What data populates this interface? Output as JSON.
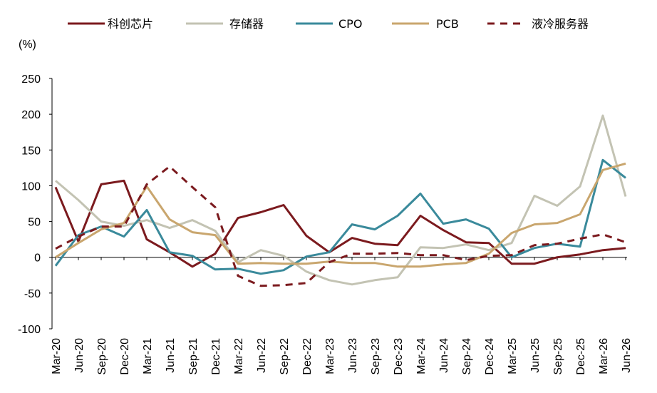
{
  "chart_data": {
    "type": "line",
    "title": "",
    "xlabel": "",
    "ylabel": "",
    "unit_label": "(%)",
    "ylim": [
      -100,
      250
    ],
    "yticks": [
      -100,
      -50,
      0,
      50,
      100,
      150,
      200,
      250
    ],
    "grid": false,
    "legend_position": "top",
    "categories": [
      "Mar-20",
      "Jun-20",
      "Sep-20",
      "Dec-20",
      "Mar-21",
      "Jun-21",
      "Sep-21",
      "Dec-21",
      "Mar-22",
      "Jun-22",
      "Sep-22",
      "Dec-22",
      "Mar-23",
      "Jun-23",
      "Sep-23",
      "Dec-23",
      "Mar-24",
      "Jun-24",
      "Sep-24",
      "Dec-24",
      "Mar-25",
      "Jun-25",
      "Sep-25",
      "Dec-25",
      "Mar-26",
      "Jun-26"
    ],
    "series": [
      {
        "name": "科创芯片",
        "color": "#7B1A1E",
        "dash": "solid",
        "values": [
          98,
          22,
          102,
          107,
          25,
          7,
          -13,
          5,
          55,
          63,
          73,
          30,
          7,
          27,
          19,
          17,
          58,
          38,
          21,
          20,
          -9,
          -9,
          0,
          4,
          10,
          13
        ]
      },
      {
        "name": "存储器",
        "color": "#C3C3B3",
        "dash": "solid",
        "values": [
          107,
          80,
          50,
          44,
          52,
          41,
          52,
          37,
          -7,
          10,
          2,
          -20,
          -32,
          -38,
          -32,
          -28,
          14,
          13,
          18,
          10,
          20,
          86,
          72,
          99,
          198,
          85
        ]
      },
      {
        "name": "CPO",
        "color": "#3A8A9B",
        "dash": "solid",
        "values": [
          -12,
          31,
          43,
          29,
          66,
          7,
          2,
          -17,
          -16,
          -23,
          -18,
          1,
          7,
          46,
          39,
          58,
          89,
          47,
          53,
          40,
          0,
          13,
          19,
          15,
          136,
          111
        ]
      },
      {
        "name": "PCB",
        "color": "#C9A66E",
        "dash": "solid",
        "values": [
          0,
          20,
          39,
          48,
          99,
          53,
          35,
          31,
          -9,
          -8,
          -9,
          -9,
          -6,
          -8,
          -8,
          -13,
          -13,
          -10,
          -8,
          5,
          34,
          46,
          48,
          60,
          122,
          131
        ]
      },
      {
        "name": "液冷服务器",
        "color": "#7B1A1E",
        "dash": "dashed",
        "values": [
          12,
          29,
          43,
          43,
          102,
          127,
          98,
          70,
          -26,
          -40,
          -39,
          -36,
          -7,
          5,
          5,
          6,
          3,
          3,
          -4,
          2,
          3,
          17,
          19,
          26,
          32,
          21
        ]
      }
    ]
  }
}
